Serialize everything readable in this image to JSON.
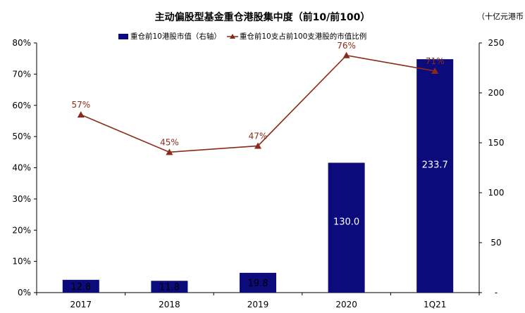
{
  "title": "主动偏股型基金重仓港股集中度（前10/前100）",
  "unit_label": "（十亿元港币",
  "legend": {
    "bar_label": "重仓前10港股市值（右轴）",
    "line_label": "重仓前10支占前100支港股的市值比例"
  },
  "colors": {
    "bar": "#0b0b7c",
    "line": "#8b2a1a",
    "bar_label_dark": "#000000",
    "bar_label_light": "#ffffff"
  },
  "chart_data": {
    "type": "bar+line",
    "categories": [
      "2017",
      "2018",
      "2019",
      "2020",
      "1Q21"
    ],
    "series": [
      {
        "name": "重仓前10港股市值（右轴）",
        "type": "bar",
        "axis": "right",
        "values": [
          12.8,
          11.8,
          19.8,
          130.0,
          233.7
        ],
        "labels": [
          "12.8",
          "11.8",
          "19.8",
          "130.0",
          "233.7"
        ]
      },
      {
        "name": "重仓前10支占前100支港股的市值比例",
        "type": "line",
        "axis": "left",
        "values": [
          57,
          45,
          47,
          76,
          71
        ],
        "labels": [
          "57%",
          "45%",
          "47%",
          "76%",
          "71%"
        ]
      }
    ],
    "left_axis": {
      "min": 0,
      "max": 80,
      "ticks": [
        0,
        10,
        20,
        30,
        40,
        50,
        60,
        70,
        80
      ],
      "tick_labels": [
        "0%",
        "10%",
        "20%",
        "30%",
        "40%",
        "50%",
        "60%",
        "70%",
        "80%"
      ]
    },
    "right_axis": {
      "min": 0,
      "max": 250,
      "ticks": [
        0,
        50,
        100,
        150,
        200,
        250
      ],
      "tick_labels": [
        "-",
        "50",
        "100",
        "150",
        "200",
        "250"
      ]
    },
    "grid": false,
    "legend_position": "top"
  }
}
